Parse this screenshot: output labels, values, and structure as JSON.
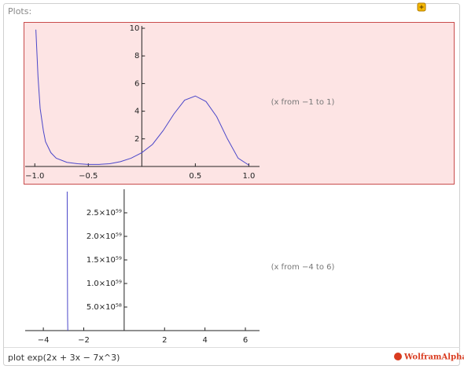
{
  "header": {
    "title": "Plots:"
  },
  "chart_data": [
    {
      "type": "line",
      "annotation": "(x from −1 to 1)",
      "x": [
        -0.99,
        -0.97,
        -0.95,
        -0.92,
        -0.9,
        -0.85,
        -0.8,
        -0.7,
        -0.6,
        -0.5,
        -0.4,
        -0.3,
        -0.2,
        -0.1,
        0,
        0.1,
        0.2,
        0.3,
        0.4,
        0.5,
        0.6,
        0.7,
        0.8,
        0.9,
        1.0
      ],
      "values": [
        9.9,
        6.5,
        4.2,
        2.6,
        1.8,
        1.0,
        0.6,
        0.3,
        0.2,
        0.15,
        0.15,
        0.2,
        0.35,
        0.6,
        1.0,
        1.6,
        2.6,
        3.8,
        4.8,
        5.1,
        4.7,
        3.6,
        2.0,
        0.6,
        0.1
      ],
      "color": "#4b47c9",
      "xlim": [
        -1.09,
        1.1
      ],
      "ylim": [
        0,
        10
      ],
      "xticks": [
        {
          "value": -1,
          "label": "−1.0"
        },
        {
          "value": -0.5,
          "label": "−0.5"
        },
        0.5,
        {
          "value": 1,
          "label": "1.0"
        }
      ],
      "yticks": [
        2,
        4,
        6,
        8,
        10
      ]
    },
    {
      "type": "line",
      "annotation": "(x from −4 to 6)",
      "x": [
        -2.82,
        -2.81,
        -2.8,
        -2.79
      ],
      "values": [
        2.95e+59,
        1.5e+59,
        3e+58,
        0
      ],
      "color": "#4b47c9",
      "xlim": [
        -4.9,
        6.7
      ],
      "ylim": [
        0,
        2.95e+59
      ],
      "xticks": [
        {
          "value": -4,
          "label": "−4"
        },
        {
          "value": -2,
          "label": "−2"
        },
        2,
        4,
        6
      ],
      "yticks": [
        {
          "value": 5e+58,
          "label": "5.0×10⁵⁸"
        },
        {
          "value": 1e+59,
          "label": "1.0×10⁵⁹"
        },
        {
          "value": 1.5e+59,
          "label": "1.5×10⁵⁹"
        },
        {
          "value": 2e+59,
          "label": "2.0×10⁵⁹"
        },
        {
          "value": 2.5e+59,
          "label": "2.5×10⁵⁹"
        }
      ]
    }
  ],
  "footer": {
    "input": "plot exp(2x + 3x − 7x^3)",
    "brand": "WolframAlpha"
  }
}
